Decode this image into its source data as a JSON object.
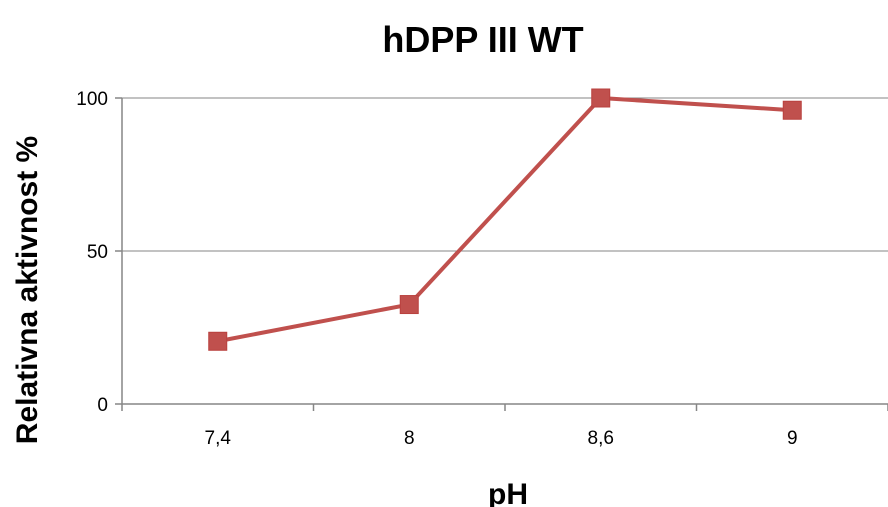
{
  "chart_data": {
    "type": "line",
    "title": "hDPP III WT",
    "xlabel": "pH",
    "ylabel": "Relativna aktivnost %",
    "categories": [
      "7,4",
      "8",
      "8,6",
      "9"
    ],
    "series": [
      {
        "values": [
          20.5,
          32.5,
          100,
          96
        ],
        "color": "#c0504d",
        "marker": "square"
      }
    ],
    "ylim": [
      0,
      100
    ],
    "yticks": [
      0,
      50,
      100
    ],
    "grid": true,
    "legend": "none"
  }
}
